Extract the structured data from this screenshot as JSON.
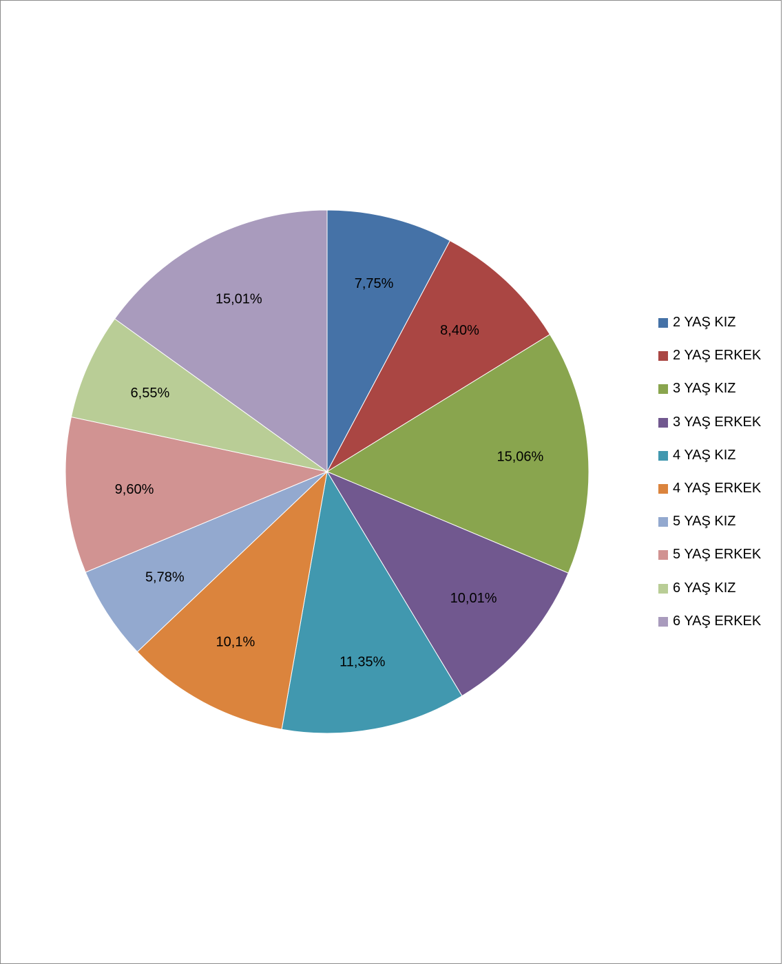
{
  "chart_data": {
    "type": "pie",
    "title": "",
    "categories": [
      "2 YAŞ KIZ",
      "2 YAŞ ERKEK",
      "3 YAŞ KIZ",
      "3 YAŞ ERKEK",
      "4 YAŞ KIZ",
      "4 YAŞ ERKEK",
      "5 YAŞ KIZ",
      "5 YAŞ ERKEK",
      "6 YAŞ KIZ",
      "6 YAŞ ERKEK"
    ],
    "values": [
      7.75,
      8.4,
      15.06,
      10.01,
      11.35,
      10.1,
      5.78,
      9.6,
      6.55,
      15.01
    ],
    "data_labels": [
      "7,75%",
      "8,40%",
      "15,06%",
      "10,01%",
      "11,35%",
      "10,1%",
      "5,78%",
      "9,60%",
      "6,55%",
      "15,01%"
    ],
    "colors": [
      "#4572A7",
      "#AA4643",
      "#89A54E",
      "#71588F",
      "#4198AF",
      "#DB843D",
      "#93A9CF",
      "#D19392",
      "#B9CD96",
      "#A99BBD"
    ],
    "start_angle": "12 o'clock",
    "direction": "clockwise",
    "legend_position": "right"
  }
}
